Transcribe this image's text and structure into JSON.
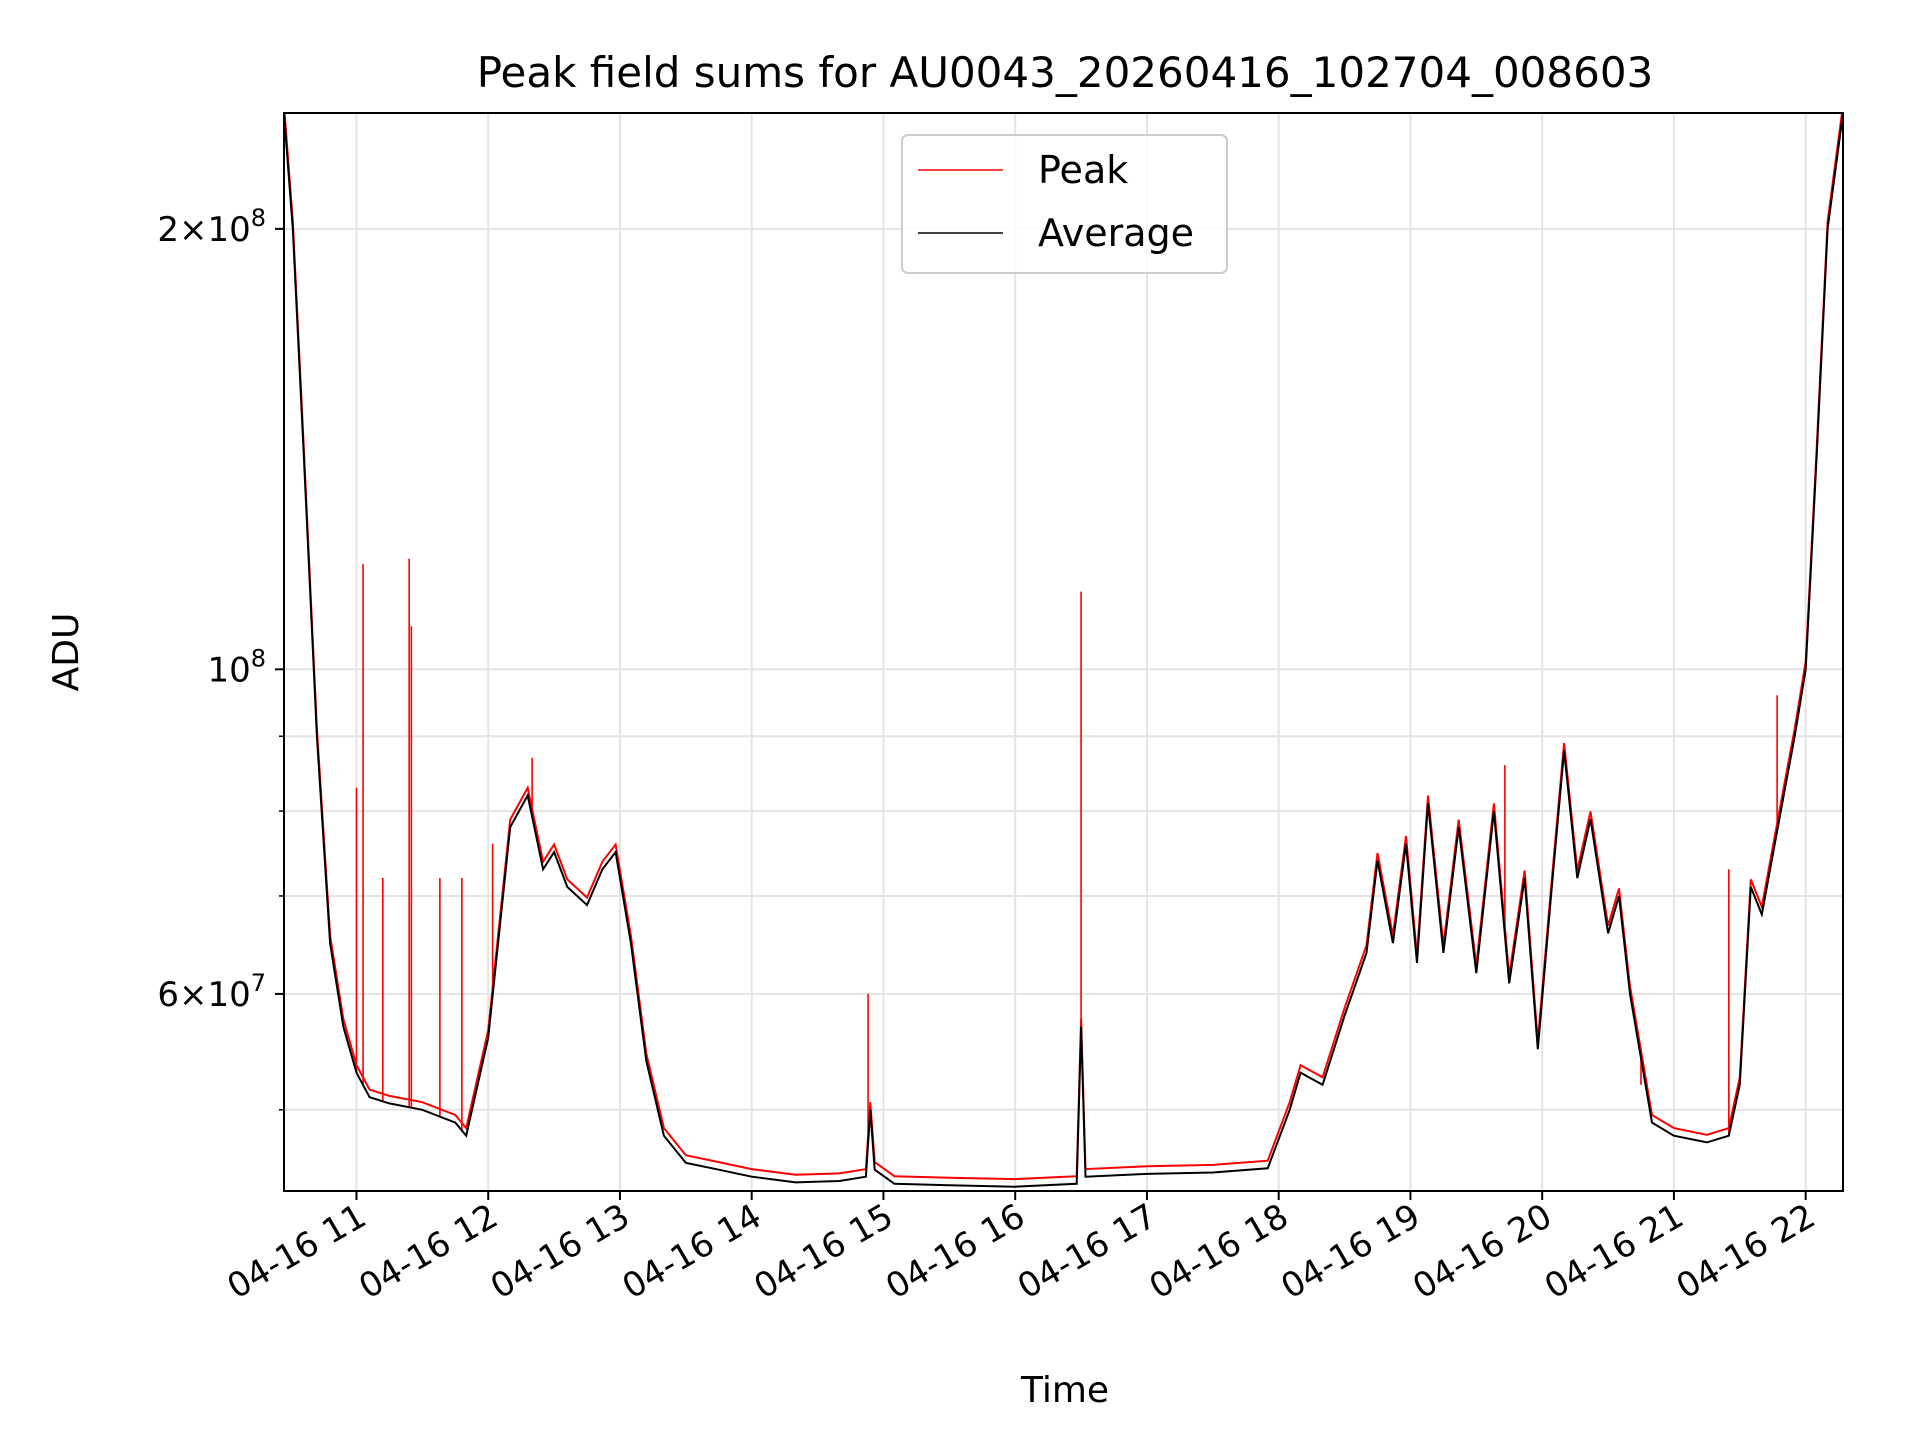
{
  "chart_data": {
    "type": "line",
    "title": "Peak field sums for AU0043_20260416_102704_008603",
    "xlabel": "Time",
    "ylabel": "ADU",
    "yscale": "log",
    "xlim": [
      "2026-04-16 10:27",
      "2026-04-16 22:17"
    ],
    "ylim": [
      44000000,
      240000000
    ],
    "grid": true,
    "legend_position": "top-center",
    "x_tick_labels": [
      "04-16 11",
      "04-16 12",
      "04-16 13",
      "04-16 14",
      "04-16 15",
      "04-16 16",
      "04-16 17",
      "04-16 18",
      "04-16 19",
      "04-16 20",
      "04-16 21",
      "04-16 22"
    ],
    "x_tick_values": [
      "2026-04-16 11:00",
      "2026-04-16 12:00",
      "2026-04-16 13:00",
      "2026-04-16 14:00",
      "2026-04-16 15:00",
      "2026-04-16 16:00",
      "2026-04-16 17:00",
      "2026-04-16 18:00",
      "2026-04-16 19:00",
      "2026-04-16 20:00",
      "2026-04-16 21:00",
      "2026-04-16 22:00"
    ],
    "y_major_ticks": [
      {
        "value": 60000000,
        "mantissa": "6",
        "exponent": "7"
      },
      {
        "value": 100000000,
        "mantissa": "",
        "exponent": "8"
      },
      {
        "value": 200000000,
        "mantissa": "2",
        "exponent": "8"
      }
    ],
    "y_minor_gridlines": [
      50000000,
      70000000,
      80000000,
      90000000
    ],
    "series": [
      {
        "name": "Average",
        "color": "#000000",
        "x": [
          "2026-04-16 10:27",
          "2026-04-16 10:31",
          "2026-04-16 10:36",
          "2026-04-16 10:42",
          "2026-04-16 10:48",
          "2026-04-16 10:54",
          "2026-04-16 11:00",
          "2026-04-16 11:06",
          "2026-04-16 11:15",
          "2026-04-16 11:30",
          "2026-04-16 11:45",
          "2026-04-16 11:50",
          "2026-04-16 12:00",
          "2026-04-16 12:10",
          "2026-04-16 12:18",
          "2026-04-16 12:25",
          "2026-04-16 12:30",
          "2026-04-16 12:36",
          "2026-04-16 12:45",
          "2026-04-16 12:52",
          "2026-04-16 12:58",
          "2026-04-16 13:05",
          "2026-04-16 13:12",
          "2026-04-16 13:20",
          "2026-04-16 13:30",
          "2026-04-16 13:45",
          "2026-04-16 14:00",
          "2026-04-16 14:20",
          "2026-04-16 14:40",
          "2026-04-16 14:52",
          "2026-04-16 14:54",
          "2026-04-16 14:56",
          "2026-04-16 15:05",
          "2026-04-16 15:30",
          "2026-04-16 16:00",
          "2026-04-16 16:28",
          "2026-04-16 16:30",
          "2026-04-16 16:32",
          "2026-04-16 17:00",
          "2026-04-16 17:30",
          "2026-04-16 17:55",
          "2026-04-16 18:05",
          "2026-04-16 18:10",
          "2026-04-16 18:20",
          "2026-04-16 18:30",
          "2026-04-16 18:40",
          "2026-04-16 18:45",
          "2026-04-16 18:52",
          "2026-04-16 18:58",
          "2026-04-16 19:03",
          "2026-04-16 19:08",
          "2026-04-16 19:15",
          "2026-04-16 19:22",
          "2026-04-16 19:30",
          "2026-04-16 19:38",
          "2026-04-16 19:45",
          "2026-04-16 19:52",
          "2026-04-16 19:58",
          "2026-04-16 20:04",
          "2026-04-16 20:10",
          "2026-04-16 20:16",
          "2026-04-16 20:22",
          "2026-04-16 20:30",
          "2026-04-16 20:35",
          "2026-04-16 20:40",
          "2026-04-16 20:50",
          "2026-04-16 21:00",
          "2026-04-16 21:15",
          "2026-04-16 21:25",
          "2026-04-16 21:30",
          "2026-04-16 21:35",
          "2026-04-16 21:40",
          "2026-04-16 21:50",
          "2026-04-16 21:55",
          "2026-04-16 22:00",
          "2026-04-16 22:05",
          "2026-04-16 22:10",
          "2026-04-16 22:17"
        ],
        "y": [
          240000000,
          200000000,
          140000000,
          90000000,
          65000000,
          57000000,
          53000000,
          51000000,
          50500000,
          50000000,
          49000000,
          48000000,
          56000000,
          78000000,
          82000000,
          73000000,
          75000000,
          71000000,
          69000000,
          73000000,
          75000000,
          65000000,
          54000000,
          48000000,
          46000000,
          45500000,
          45000000,
          44600000,
          44700000,
          45000000,
          50000000,
          45500000,
          44500000,
          44400000,
          44300000,
          44500000,
          57000000,
          45000000,
          45200000,
          45300000,
          45600000,
          50000000,
          53000000,
          52000000,
          58000000,
          64000000,
          74000000,
          65000000,
          76000000,
          63000000,
          81000000,
          64000000,
          78000000,
          62000000,
          80000000,
          61000000,
          72000000,
          55000000,
          70000000,
          88000000,
          72000000,
          79000000,
          66000000,
          70000000,
          60000000,
          49000000,
          48000000,
          47500000,
          48000000,
          52000000,
          71000000,
          68000000,
          82000000,
          90000000,
          100000000,
          140000000,
          200000000,
          240000000
        ]
      },
      {
        "name": "Peak",
        "color": "#ff0000",
        "spikes": [
          {
            "x": "2026-04-16 11:00",
            "y": 83000000
          },
          {
            "x": "2026-04-16 11:03",
            "y": 118000000
          },
          {
            "x": "2026-04-16 11:12",
            "y": 72000000
          },
          {
            "x": "2026-04-16 11:24",
            "y": 119000000
          },
          {
            "x": "2026-04-16 11:25",
            "y": 107000000
          },
          {
            "x": "2026-04-16 11:38",
            "y": 72000000
          },
          {
            "x": "2026-04-16 11:48",
            "y": 72000000
          },
          {
            "x": "2026-04-16 12:02",
            "y": 76000000
          },
          {
            "x": "2026-04-16 12:20",
            "y": 87000000
          },
          {
            "x": "2026-04-16 14:53",
            "y": 60000000
          },
          {
            "x": "2026-04-16 16:30",
            "y": 113000000
          },
          {
            "x": "2026-04-16 19:43",
            "y": 86000000
          },
          {
            "x": "2026-04-16 20:45",
            "y": 52000000
          },
          {
            "x": "2026-04-16 21:25",
            "y": 73000000
          },
          {
            "x": "2026-04-16 21:47",
            "y": 96000000
          }
        ]
      }
    ]
  }
}
